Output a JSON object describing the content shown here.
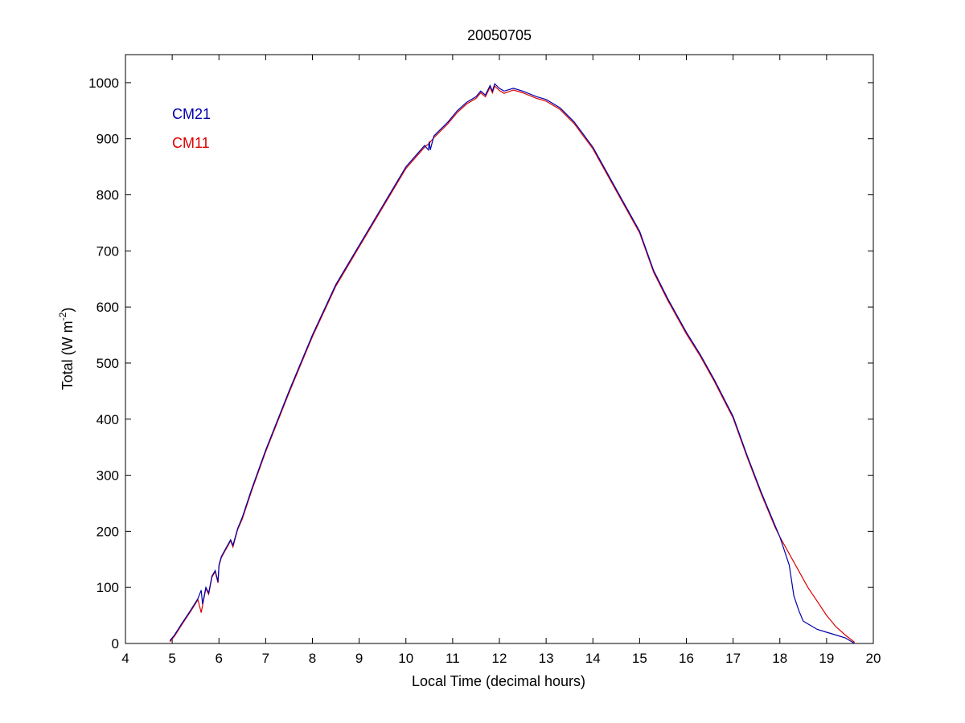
{
  "chart_data": {
    "type": "line",
    "title": "20050705",
    "xlabel": "Local Time (decimal hours)",
    "ylabel": {
      "main": "Total (W m",
      "sup": "-2",
      "end": ")"
    },
    "xlim": [
      4,
      20
    ],
    "ylim": [
      0,
      1050
    ],
    "xticks": [
      4,
      5,
      6,
      7,
      8,
      9,
      10,
      11,
      12,
      13,
      14,
      15,
      16,
      17,
      18,
      19,
      20
    ],
    "yticks": [
      0,
      100,
      200,
      300,
      400,
      500,
      600,
      700,
      800,
      900,
      1000
    ],
    "grid": false,
    "legend_placement": "top-left",
    "series": [
      {
        "name": "CM21",
        "color": "#0000aa",
        "x": [
          4.95,
          5.05,
          5.2,
          5.4,
          5.55,
          5.62,
          5.65,
          5.72,
          5.78,
          5.85,
          5.92,
          5.98,
          6.0,
          6.05,
          6.15,
          6.25,
          6.3,
          6.35,
          6.4,
          6.5,
          6.7,
          7.0,
          7.5,
          8.0,
          8.5,
          9.0,
          9.5,
          10.0,
          10.4,
          10.48,
          10.5,
          10.52,
          10.6,
          10.9,
          11.1,
          11.3,
          11.5,
          11.6,
          11.7,
          11.8,
          11.85,
          11.9,
          12.0,
          12.1,
          12.3,
          12.5,
          12.8,
          13.0,
          13.3,
          13.6,
          14.0,
          14.3,
          14.6,
          15.0,
          15.3,
          15.6,
          16.0,
          16.3,
          16.6,
          17.0,
          17.3,
          17.6,
          17.9,
          18.0,
          18.2,
          18.3,
          18.4,
          18.5,
          18.6,
          18.8,
          19.0,
          19.2,
          19.4,
          19.5,
          19.6
        ],
        "y": [
          5,
          15,
          35,
          60,
          80,
          95,
          70,
          100,
          90,
          120,
          130,
          110,
          140,
          155,
          170,
          185,
          175,
          190,
          205,
          225,
          275,
          345,
          450,
          550,
          640,
          710,
          780,
          850,
          888,
          880,
          895,
          880,
          905,
          930,
          950,
          965,
          975,
          985,
          978,
          995,
          985,
          998,
          990,
          985,
          990,
          985,
          975,
          970,
          955,
          930,
          885,
          840,
          795,
          735,
          665,
          615,
          555,
          515,
          470,
          405,
          335,
          270,
          210,
          190,
          140,
          85,
          60,
          40,
          35,
          25,
          20,
          15,
          10,
          5,
          0
        ]
      },
      {
        "name": "CM11",
        "color": "#dd0000",
        "x": [
          4.95,
          5.05,
          5.2,
          5.4,
          5.55,
          5.62,
          5.65,
          5.72,
          5.78,
          5.85,
          5.92,
          5.98,
          6.0,
          6.05,
          6.15,
          6.25,
          6.3,
          6.35,
          6.4,
          6.5,
          6.7,
          7.0,
          7.5,
          8.0,
          8.5,
          9.0,
          9.5,
          10.0,
          10.4,
          10.5,
          10.6,
          10.9,
          11.1,
          11.3,
          11.5,
          11.6,
          11.7,
          11.8,
          11.85,
          11.9,
          12.0,
          12.1,
          12.3,
          12.5,
          12.8,
          13.0,
          13.3,
          13.6,
          14.0,
          14.3,
          14.6,
          15.0,
          15.3,
          15.6,
          16.0,
          16.3,
          16.6,
          17.0,
          17.3,
          17.6,
          17.9,
          18.0,
          18.2,
          18.4,
          18.6,
          18.8,
          19.0,
          19.2,
          19.4,
          19.6
        ],
        "y": [
          3,
          13,
          33,
          58,
          78,
          55,
          68,
          98,
          88,
          118,
          128,
          108,
          138,
          153,
          168,
          183,
          172,
          188,
          203,
          222,
          272,
          342,
          447,
          547,
          637,
          707,
          777,
          847,
          885,
          892,
          902,
          927,
          947,
          962,
          972,
          982,
          975,
          992,
          982,
          994,
          986,
          981,
          987,
          982,
          972,
          967,
          952,
          927,
          882,
          837,
          792,
          732,
          662,
          612,
          552,
          512,
          467,
          402,
          332,
          267,
          207,
          190,
          160,
          130,
          100,
          75,
          50,
          30,
          15,
          2
        ]
      }
    ]
  }
}
